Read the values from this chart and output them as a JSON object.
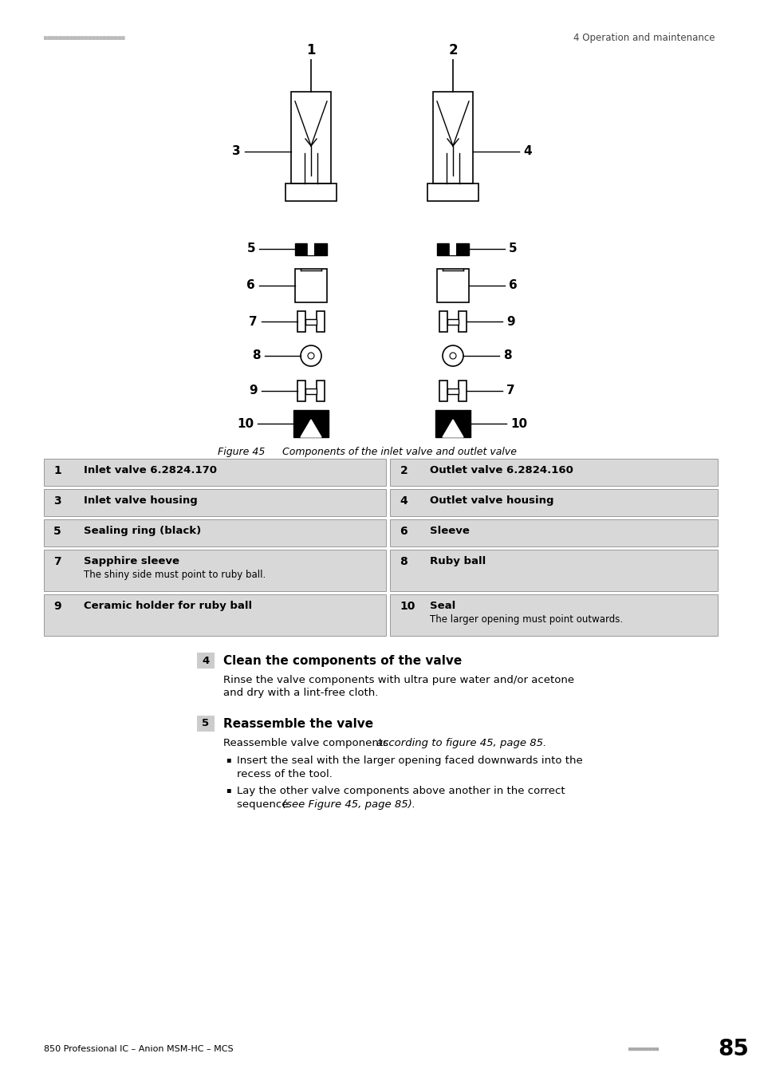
{
  "page_header_right": "4 Operation and maintenance",
  "figure_caption_label": "Figure 45",
  "figure_caption_text": "    Components of the inlet valve and outlet valve",
  "table_rows": [
    {
      "num_left": "1",
      "text_left": "Inlet valve 6.2824.170",
      "sub_left": "",
      "num_right": "2",
      "text_right": "Outlet valve 6.2824.160",
      "sub_right": ""
    },
    {
      "num_left": "3",
      "text_left": "Inlet valve housing",
      "sub_left": "",
      "num_right": "4",
      "text_right": "Outlet valve housing",
      "sub_right": ""
    },
    {
      "num_left": "5",
      "text_left": "Sealing ring (black)",
      "sub_left": "",
      "num_right": "6",
      "text_right": "Sleeve",
      "sub_right": ""
    },
    {
      "num_left": "7",
      "text_left": "Sapphire sleeve",
      "sub_left": "The shiny side must point to ruby ball.",
      "num_right": "8",
      "text_right": "Ruby ball",
      "sub_right": ""
    },
    {
      "num_left": "9",
      "text_left": "Ceramic holder for ruby ball",
      "sub_left": "",
      "num_right": "10",
      "text_right": "Seal",
      "sub_right": "The larger opening must point outwards."
    }
  ],
  "step4_num": "4",
  "step4_title": "Clean the components of the valve",
  "step4_line1": "Rinse the valve components with ultra pure water and/or acetone",
  "step4_line2": "and dry with a lint-free cloth.",
  "step5_num": "5",
  "step5_title": "Reassemble the valve",
  "step5_intro_normal": "Reassemble valve components ",
  "step5_intro_italic": "according to figure 45, page 85.",
  "step5_bullet1_line1": "Insert the seal with the larger opening faced downwards into the",
  "step5_bullet1_line2": "recess of the tool.",
  "step5_bullet2_line1": "Lay the other valve components above another in the correct",
  "step5_bullet2_line2": "sequence ",
  "step5_bullet2_italic": "(see Figure 45, page 85).",
  "footer_left": "850 Professional IC – Anion MSM-HC – MCS",
  "footer_page": "85",
  "bg_color": "#ffffff",
  "table_bg": "#d8d8d8",
  "header_dot_color": "#aaaaaa"
}
